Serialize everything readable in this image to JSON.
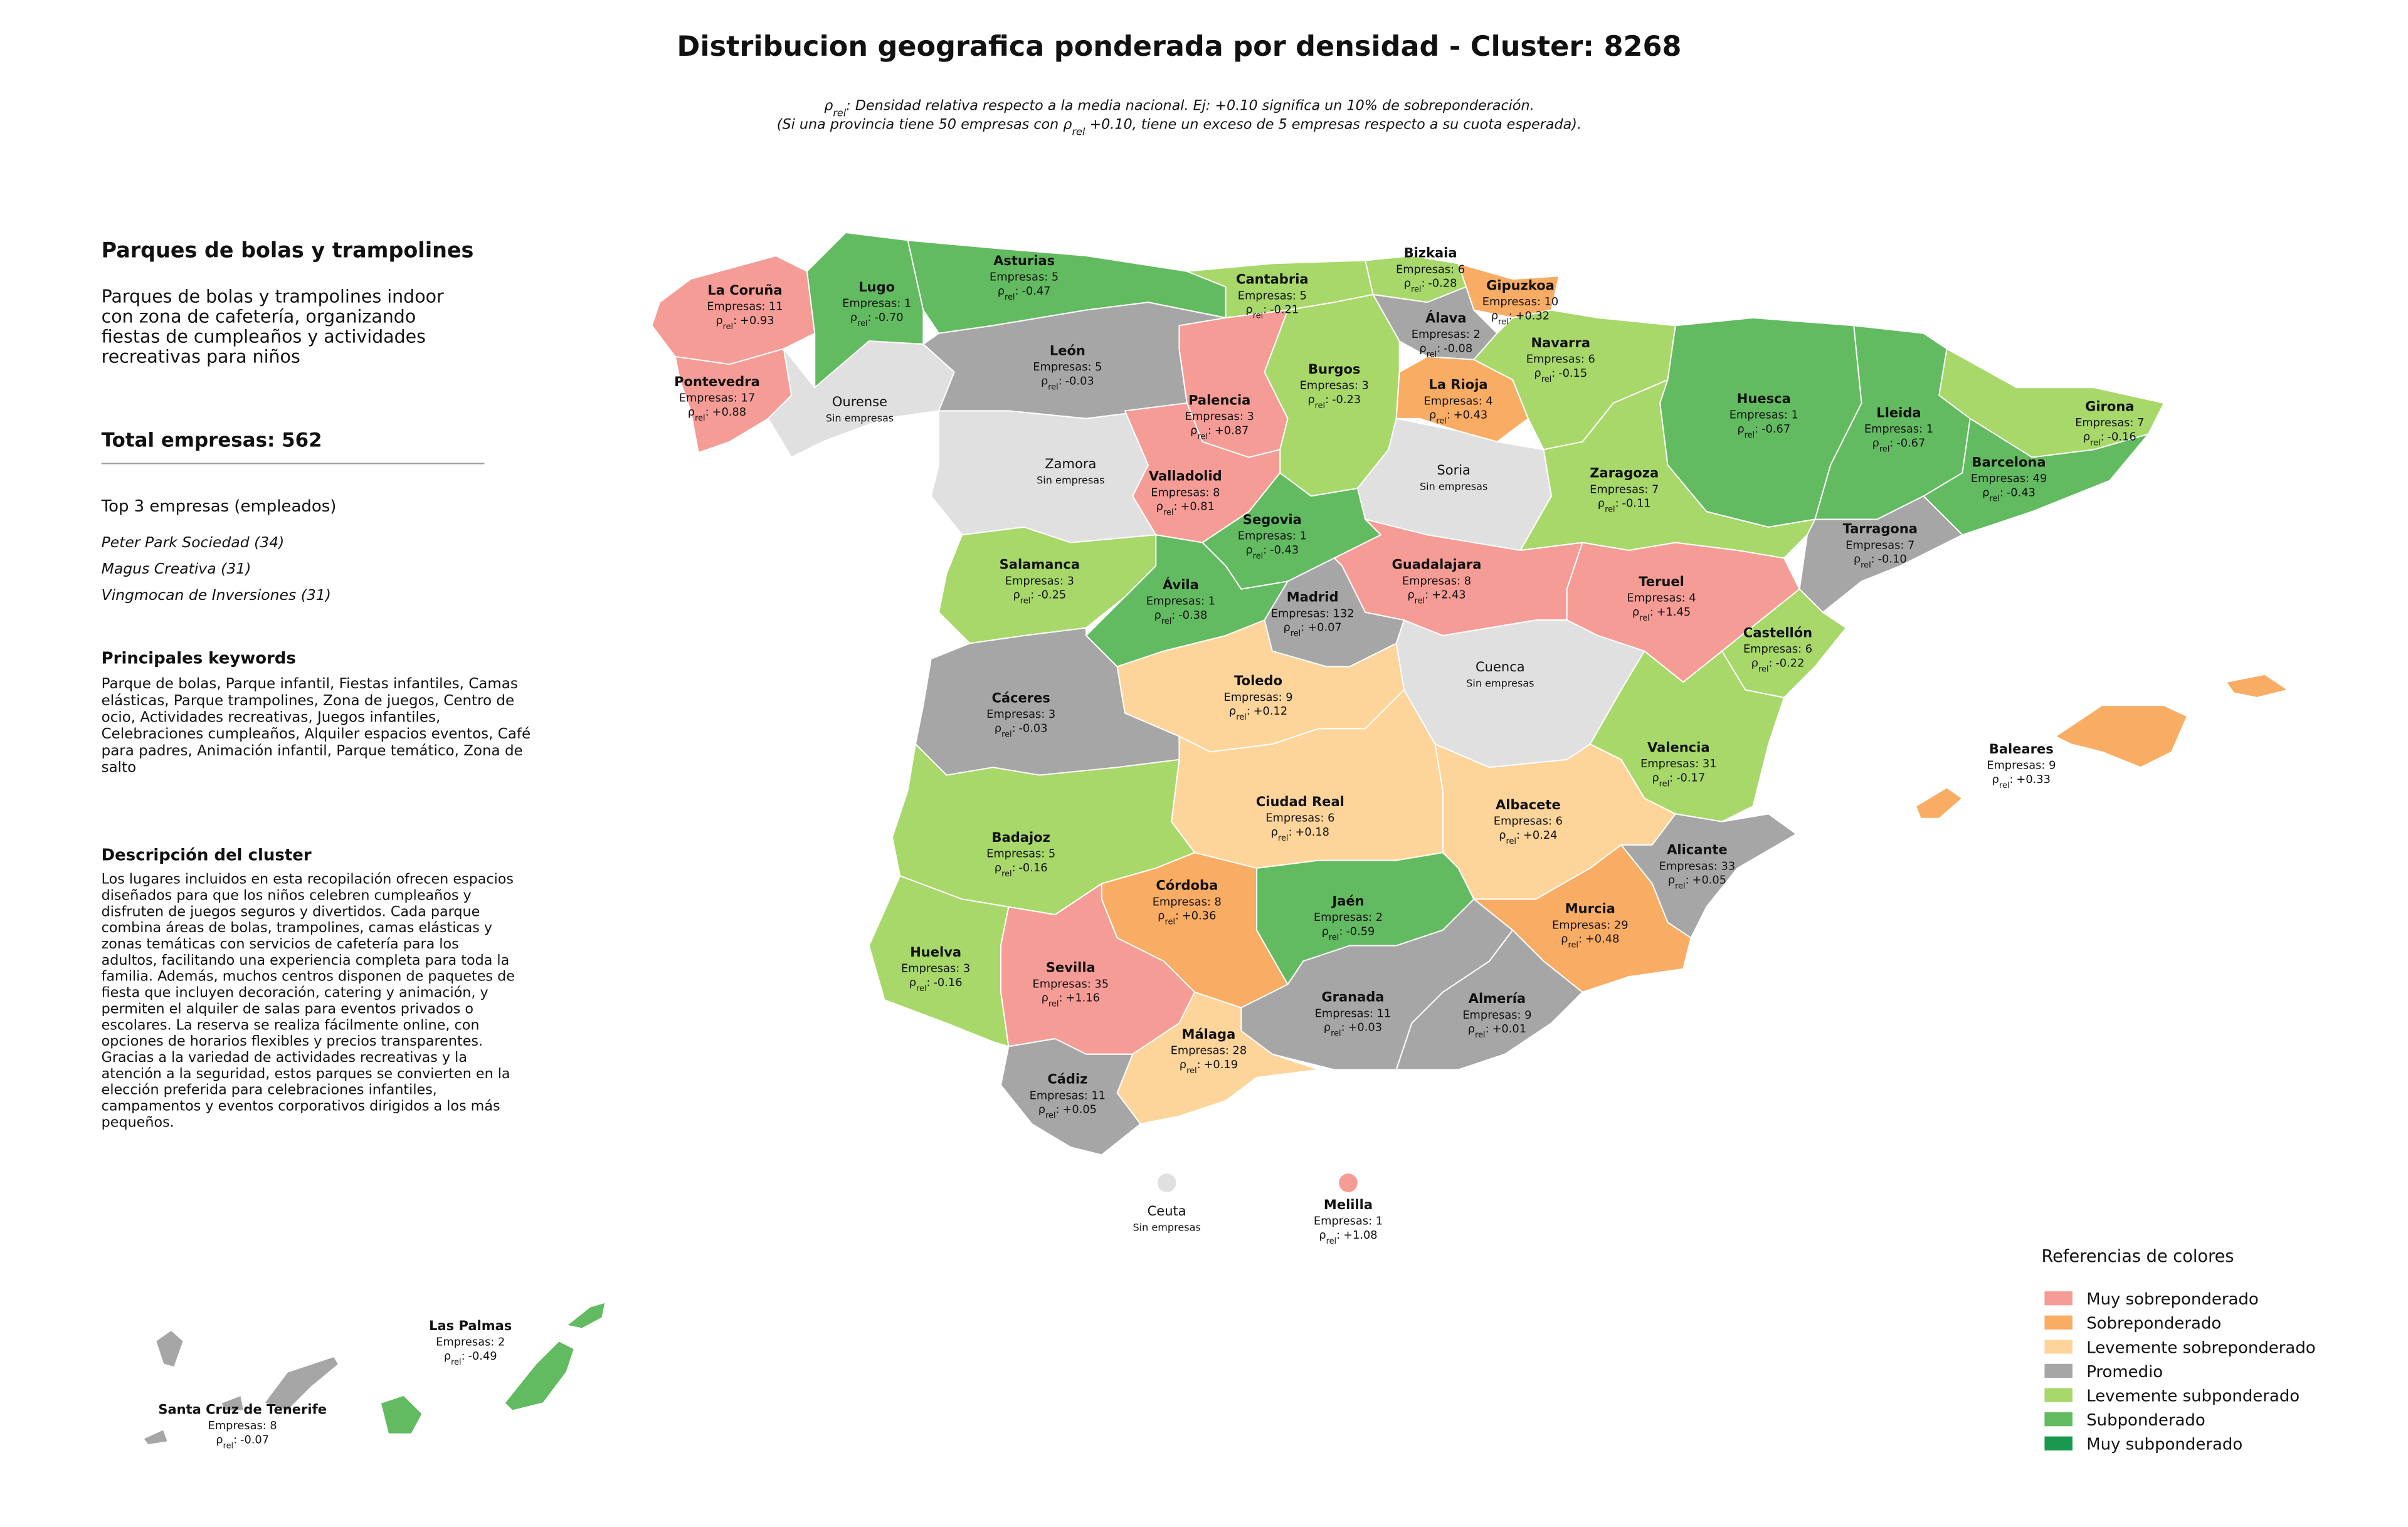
{
  "title": "Distribucion geografica ponderada por densidad - Cluster: 8268",
  "subtitle": [
    [
      {
        "text": "ρ"
      },
      {
        "text": "rel",
        "sub": true
      },
      {
        "text": ": Densidad relativa respecto a la media nacional. Ej: +0.10 significa un 10% de sobreponderación."
      }
    ],
    [
      {
        "text": "(Si una provincia tiene 50 empresas con ρ"
      },
      {
        "text": "rel",
        "sub": true
      },
      {
        "text": " +0.10, tiene un exceso de 5 empresas respecto a su cuota esperada)."
      }
    ]
  ],
  "panel": {
    "heading": "Parques de bolas y trampolines",
    "summary": [
      "Parques de bolas y trampolines indoor",
      "con zona de cafetería, organizando",
      "fiestas de cumpleaños y actividades",
      "recreativas para niños"
    ],
    "total": "Total empresas: 562",
    "top_title": "Top 3 empresas (empleados)",
    "top": [
      "Peter Park Sociedad (34)",
      "Magus Creativa (31)",
      "Vingmocan de Inversiones (31)"
    ],
    "keywords_title": "Principales keywords",
    "keywords": [
      "Parque de bolas, Parque infantil, Fiestas infantiles, Camas",
      "elásticas, Parque trampolines, Zona de juegos, Centro de",
      "ocio, Actividades recreativas, Juegos infantiles,",
      "Celebraciones cumpleaños, Alquiler espacios eventos, Café",
      "para padres, Animación infantil, Parque temático, Zona de",
      "salto"
    ],
    "description_title": "Descripción del cluster",
    "description": [
      "Los lugares incluidos en esta recopilación ofrecen espacios",
      "diseñados para que los niños celebren cumpleaños y",
      "disfruten de juegos seguros y divertidos. Cada parque",
      "combina áreas de bolas, trampolines, camas elásticas y",
      "zonas temáticas con servicios de cafetería para los",
      "adultos, facilitando una experiencia completa para toda la",
      "familia. Además, muchos centros disponen de paquetes de",
      "fiesta que incluyen decoración, catering y animación, y",
      "permiten el alquiler de salas para eventos privados o",
      "escolares. La reserva se realiza fácilmente online, con",
      "opciones de horarios flexibles y precios transparentes.",
      "Gracias a la variedad de actividades recreativas y la",
      "atención a la seguridad, estos parques se convierten en la",
      "elección preferida para celebraciones infantiles,",
      "campamentos y eventos corporativos dirigidos a los más",
      "pequeños."
    ]
  },
  "map": {
    "rho_symbol": "ρ",
    "rho_subscript": "rel",
    "rho_colon": ":",
    "provinces": [
      {
        "name": "La Coruña",
        "companies": "Empresas: 11",
        "rho": "+0.93",
        "color": "#f59c96"
      },
      {
        "name": "Lugo",
        "companies": "Empresas: 1",
        "rho": "-0.70",
        "color": "#62bb60"
      },
      {
        "name": "Asturias",
        "companies": "Empresas: 5",
        "rho": "-0.47",
        "color": "#62bb60"
      },
      {
        "name": "Cantabria",
        "companies": "Empresas: 5",
        "rho": "-0.21",
        "color": "#a7d869"
      },
      {
        "name": "Bizkaia",
        "companies": "Empresas: 6",
        "rho": "-0.28",
        "color": "#a7d869"
      },
      {
        "name": "Gipuzkoa",
        "companies": "Empresas: 10",
        "rho": "+0.32",
        "color": "#f9ac63"
      },
      {
        "name": "Álava",
        "companies": "Empresas: 2",
        "rho": "-0.08",
        "color": "#a6a6a6"
      },
      {
        "name": "Navarra",
        "companies": "Empresas: 6",
        "rho": "-0.15",
        "color": "#a7d869"
      },
      {
        "name": "Pontevedra",
        "companies": "Empresas: 17",
        "rho": "+0.88",
        "color": "#f59c96"
      },
      {
        "name": "Ourense",
        "companies": "Sin empresas",
        "color": "#e0e0e0"
      },
      {
        "name": "León",
        "companies": "Empresas: 5",
        "rho": "-0.03",
        "color": "#a6a6a6"
      },
      {
        "name": "Palencia",
        "companies": "Empresas: 3",
        "rho": "+0.87",
        "color": "#f59c96"
      },
      {
        "name": "Burgos",
        "companies": "Empresas: 3",
        "rho": "-0.23",
        "color": "#a7d869"
      },
      {
        "name": "La Rioja",
        "companies": "Empresas: 4",
        "rho": "+0.43",
        "color": "#f9ac63"
      },
      {
        "name": "Huesca",
        "companies": "Empresas: 1",
        "rho": "-0.67",
        "color": "#62bb60"
      },
      {
        "name": "Lleida",
        "companies": "Empresas: 1",
        "rho": "-0.67",
        "color": "#62bb60"
      },
      {
        "name": "Girona",
        "companies": "Empresas: 7",
        "rho": "-0.16",
        "color": "#a7d869"
      },
      {
        "name": "Barcelona",
        "companies": "Empresas: 49",
        "rho": "-0.43",
        "color": "#62bb60"
      },
      {
        "name": "Zamora",
        "companies": "Sin empresas",
        "color": "#e0e0e0"
      },
      {
        "name": "Soria",
        "companies": "Sin empresas",
        "color": "#e0e0e0"
      },
      {
        "name": "Zaragoza",
        "companies": "Empresas: 7",
        "rho": "-0.11",
        "color": "#a7d869"
      },
      {
        "name": "Valladolid",
        "companies": "Empresas: 8",
        "rho": "+0.81",
        "color": "#f59c96"
      },
      {
        "name": "Segovia",
        "companies": "Empresas: 1",
        "rho": "-0.43",
        "color": "#62bb60"
      },
      {
        "name": "Tarragona",
        "companies": "Empresas: 7",
        "rho": "-0.10",
        "color": "#a6a6a6"
      },
      {
        "name": "Salamanca",
        "companies": "Empresas: 3",
        "rho": "-0.25",
        "color": "#a7d869"
      },
      {
        "name": "Guadalajara",
        "companies": "Empresas: 8",
        "rho": "+2.43",
        "color": "#f59c96"
      },
      {
        "name": "Teruel",
        "companies": "Empresas: 4",
        "rho": "+1.45",
        "color": "#f59c96"
      },
      {
        "name": "Ávila",
        "companies": "Empresas: 1",
        "rho": "-0.38",
        "color": "#62bb60"
      },
      {
        "name": "Madrid",
        "companies": "Empresas: 132",
        "rho": "+0.07",
        "color": "#a6a6a6"
      },
      {
        "name": "Castellón",
        "companies": "Empresas: 6",
        "rho": "-0.22",
        "color": "#a7d869"
      },
      {
        "name": "Cuenca",
        "companies": "Sin empresas",
        "color": "#e0e0e0"
      },
      {
        "name": "Toledo",
        "companies": "Empresas: 9",
        "rho": "+0.12",
        "color": "#fdd49a"
      },
      {
        "name": "Cáceres",
        "companies": "Empresas: 3",
        "rho": "-0.03",
        "color": "#a6a6a6"
      },
      {
        "name": "Baleares",
        "companies": "Empresas: 9",
        "rho": "+0.33",
        "color": "#f9ac63"
      },
      {
        "name": "Valencia",
        "companies": "Empresas: 31",
        "rho": "-0.17",
        "color": "#a7d869"
      },
      {
        "name": "Ciudad Real",
        "companies": "Empresas: 6",
        "rho": "+0.18",
        "color": "#fdd49a"
      },
      {
        "name": "Albacete",
        "companies": "Empresas: 6",
        "rho": "+0.24",
        "color": "#fdd49a"
      },
      {
        "name": "Badajoz",
        "companies": "Empresas: 5",
        "rho": "-0.16",
        "color": "#a7d869"
      },
      {
        "name": "Alicante",
        "companies": "Empresas: 33",
        "rho": "+0.05",
        "color": "#a6a6a6"
      },
      {
        "name": "Córdoba",
        "companies": "Empresas: 8",
        "rho": "+0.36",
        "color": "#f9ac63"
      },
      {
        "name": "Jaén",
        "companies": "Empresas: 2",
        "rho": "-0.59",
        "color": "#62bb60"
      },
      {
        "name": "Murcia",
        "companies": "Empresas: 29",
        "rho": "+0.48",
        "color": "#f9ac63"
      },
      {
        "name": "Huelva",
        "companies": "Empresas: 3",
        "rho": "-0.16",
        "color": "#a7d869"
      },
      {
        "name": "Sevilla",
        "companies": "Empresas: 35",
        "rho": "+1.16",
        "color": "#f59c96"
      },
      {
        "name": "Granada",
        "companies": "Empresas: 11",
        "rho": "+0.03",
        "color": "#a6a6a6"
      },
      {
        "name": "Almería",
        "companies": "Empresas: 9",
        "rho": "+0.01",
        "color": "#a6a6a6"
      },
      {
        "name": "Málaga",
        "companies": "Empresas: 28",
        "rho": "+0.19",
        "color": "#fdd49a"
      },
      {
        "name": "Cádiz",
        "companies": "Empresas: 11",
        "rho": "+0.05",
        "color": "#a6a6a6"
      },
      {
        "name": "Ceuta",
        "companies": "Sin empresas",
        "color": "#e0e0e0"
      },
      {
        "name": "Melilla",
        "companies": "Empresas: 1",
        "rho": "+1.08",
        "color": "#f59c96"
      },
      {
        "name": "Las Palmas",
        "companies": "Empresas: 2",
        "rho": "-0.49",
        "color": "#62bb60"
      },
      {
        "name": "Santa Cruz de Tenerife",
        "companies": "Empresas: 8",
        "rho": "-0.07",
        "color": "#a6a6a6"
      }
    ]
  },
  "legend": {
    "title": "Referencias de colores",
    "items": [
      {
        "label": "Muy sobreponderado",
        "color": "#f59c96"
      },
      {
        "label": "Sobreponderado",
        "color": "#f9ac63"
      },
      {
        "label": "Levemente sobreponderado",
        "color": "#fdd49a"
      },
      {
        "label": "Promedio",
        "color": "#a6a6a6"
      },
      {
        "label": "Levemente subponderado",
        "color": "#a7d869"
      },
      {
        "label": "Subponderado",
        "color": "#62bb60"
      },
      {
        "label": "Muy subponderado",
        "color": "#1a9850"
      }
    ]
  }
}
